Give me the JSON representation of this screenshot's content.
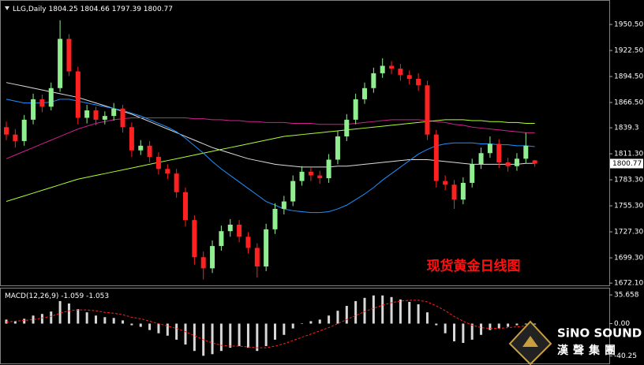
{
  "chart_data": {
    "type": "candlestick",
    "symbol": "LLG,Daily",
    "open": [
      1840,
      1832,
      1825,
      1848,
      1870,
      1862,
      1882,
      1935,
      1900,
      1850,
      1858,
      1848,
      1852,
      1860,
      1840,
      1815,
      1820,
      1808,
      1795,
      1790,
      1770,
      1740,
      1700,
      1688,
      1712,
      1728,
      1735,
      1722,
      1710,
      1690,
      1730,
      1752,
      1760,
      1782,
      1792,
      1788,
      1785,
      1805,
      1830,
      1848,
      1870,
      1882,
      1898,
      1906,
      1903,
      1896,
      1892,
      1885,
      1832,
      1782,
      1778,
      1762,
      1780,
      1800,
      1812,
      1822,
      1802,
      1798,
      1806,
      1804.25
    ],
    "high": [
      1846,
      1838,
      1853,
      1876,
      1875,
      1888,
      1955,
      1940,
      1905,
      1864,
      1862,
      1857,
      1866,
      1864,
      1845,
      1826,
      1825,
      1813,
      1800,
      1795,
      1775,
      1745,
      1706,
      1718,
      1734,
      1741,
      1740,
      1727,
      1715,
      1736,
      1758,
      1766,
      1788,
      1798,
      1797,
      1793,
      1811,
      1836,
      1854,
      1876,
      1888,
      1904,
      1914,
      1911,
      1908,
      1901,
      1898,
      1890,
      1837,
      1788,
      1783,
      1786,
      1806,
      1818,
      1830,
      1827,
      1807,
      1812,
      1834,
      1804.66
    ],
    "low": [
      1826,
      1818,
      1820,
      1843,
      1856,
      1858,
      1878,
      1895,
      1843,
      1844,
      1842,
      1843,
      1847,
      1834,
      1808,
      1810,
      1802,
      1789,
      1784,
      1764,
      1733,
      1692,
      1676,
      1683,
      1707,
      1722,
      1716,
      1704,
      1678,
      1685,
      1725,
      1746,
      1755,
      1777,
      1782,
      1779,
      1780,
      1800,
      1825,
      1843,
      1865,
      1877,
      1893,
      1897,
      1890,
      1886,
      1879,
      1826,
      1775,
      1772,
      1752,
      1757,
      1775,
      1795,
      1807,
      1796,
      1792,
      1793,
      1801,
      1797.39
    ],
    "close": [
      1832,
      1825,
      1848,
      1870,
      1862,
      1882,
      1935,
      1900,
      1850,
      1858,
      1848,
      1852,
      1860,
      1840,
      1815,
      1820,
      1808,
      1795,
      1790,
      1770,
      1740,
      1700,
      1688,
      1712,
      1728,
      1735,
      1722,
      1710,
      1690,
      1730,
      1752,
      1760,
      1782,
      1792,
      1788,
      1785,
      1805,
      1830,
      1848,
      1870,
      1882,
      1898,
      1906,
      1903,
      1896,
      1892,
      1885,
      1832,
      1782,
      1778,
      1762,
      1780,
      1800,
      1812,
      1822,
      1802,
      1798,
      1806,
      1820,
      1800.77
    ],
    "up_color": "#90ee90",
    "down_color": "#ff2020",
    "ylim": [
      1668.8,
      1976
    ],
    "yticks": [
      {
        "value": 1950.5,
        "label": "1950.50"
      },
      {
        "value": 1922.5,
        "label": "1922.50"
      },
      {
        "value": 1894.5,
        "label": "1894.50"
      },
      {
        "value": 1866.5,
        "label": "1866.50"
      },
      1839.3,
      {
        "value": 1811.3,
        "label": "1811.30"
      },
      {
        "value": 1783.3,
        "label": "1783.30"
      },
      {
        "value": 1755.3,
        "label": "1755.30"
      },
      {
        "value": 1727.3,
        "label": "1727.30"
      },
      {
        "value": 1699.3,
        "label": "1699.30"
      },
      {
        "value": 1672.1,
        "label": "1672.10"
      }
    ],
    "overlays": [
      {
        "color": "#dddddd",
        "values": [
          1888,
          1886,
          1884,
          1882,
          1880,
          1878,
          1876,
          1874,
          1872,
          1869,
          1866,
          1863,
          1860,
          1857,
          1854,
          1850,
          1846,
          1842,
          1838,
          1834,
          1830,
          1826,
          1822,
          1818,
          1815,
          1812,
          1809,
          1806,
          1804,
          1802,
          1800,
          1799,
          1798,
          1797,
          1797,
          1797,
          1797,
          1798,
          1798,
          1799,
          1800,
          1801,
          1802,
          1803,
          1804,
          1805,
          1805,
          1805,
          1804,
          1803,
          1802,
          1801,
          1800,
          1800,
          1800,
          1800,
          1800,
          1800,
          1801,
          1801
        ]
      },
      {
        "color": "#d02090",
        "values": [
          1806,
          1810,
          1814,
          1818,
          1822,
          1826,
          1830,
          1834,
          1838,
          1841,
          1844,
          1846,
          1848,
          1849,
          1850,
          1850,
          1850,
          1850,
          1850,
          1850,
          1850,
          1849,
          1849,
          1848,
          1848,
          1847,
          1847,
          1846,
          1846,
          1845,
          1845,
          1845,
          1844,
          1844,
          1844,
          1843,
          1843,
          1843,
          1843,
          1844,
          1845,
          1846,
          1847,
          1848,
          1848,
          1848,
          1848,
          1847,
          1846,
          1845,
          1843,
          1842,
          1840,
          1839,
          1838,
          1837,
          1836,
          1835,
          1834,
          1834
        ]
      },
      {
        "color": "#adff2f",
        "values": [
          1760,
          1763,
          1766,
          1769,
          1772,
          1775,
          1778,
          1781,
          1784,
          1786,
          1788,
          1790,
          1792,
          1794,
          1796,
          1798,
          1800,
          1802,
          1804,
          1806,
          1808,
          1810,
          1812,
          1814,
          1816,
          1818,
          1820,
          1822,
          1824,
          1826,
          1828,
          1830,
          1831,
          1832,
          1833,
          1834,
          1835,
          1836,
          1837,
          1838,
          1839,
          1840,
          1841,
          1842,
          1843,
          1844,
          1845,
          1846,
          1847,
          1848,
          1848,
          1848,
          1847,
          1847,
          1846,
          1846,
          1845,
          1845,
          1844,
          1844
        ]
      },
      {
        "color": "#1e90ff",
        "values": [
          1870,
          1868,
          1866,
          1866,
          1866,
          1867,
          1870,
          1870,
          1868,
          1866,
          1864,
          1862,
          1860,
          1858,
          1855,
          1852,
          1848,
          1844,
          1840,
          1835,
          1828,
          1820,
          1812,
          1803,
          1795,
          1788,
          1781,
          1774,
          1767,
          1760,
          1756,
          1752,
          1750,
          1749,
          1748,
          1748,
          1749,
          1752,
          1756,
          1762,
          1768,
          1775,
          1783,
          1790,
          1797,
          1804,
          1811,
          1816,
          1820,
          1822,
          1823,
          1823,
          1823,
          1822,
          1822,
          1821,
          1821,
          1820,
          1820,
          1819
        ]
      }
    ],
    "annotation": "现货黄金日线图",
    "macd": {
      "label": "MACD(12,26,9)",
      "histogram": [
        5,
        3,
        6,
        10,
        12,
        15,
        28,
        25,
        18,
        14,
        10,
        8,
        7,
        4,
        -2,
        -4,
        -8,
        -12,
        -15,
        -20,
        -26,
        -34,
        -40,
        -38,
        -34,
        -30,
        -28,
        -30,
        -34,
        -28,
        -20,
        -14,
        -6,
        0,
        3,
        5,
        10,
        16,
        22,
        28,
        32,
        35,
        35,
        33,
        30,
        27,
        24,
        14,
        -2,
        -12,
        -22,
        -24,
        -20,
        -14,
        -8,
        -6,
        -4,
        -2,
        -1,
        -1.059
      ],
      "signal": [
        2,
        3,
        4,
        5,
        7,
        9,
        13,
        16,
        17,
        17,
        16,
        14,
        13,
        11,
        8,
        6,
        3,
        0,
        -3,
        -6,
        -10,
        -15,
        -20,
        -24,
        -27,
        -28,
        -28,
        -29,
        -30,
        -30,
        -28,
        -25,
        -21,
        -17,
        -13,
        -9,
        -5,
        0,
        5,
        10,
        15,
        19,
        23,
        26,
        28,
        29,
        29,
        27,
        22,
        16,
        9,
        3,
        -2,
        -5,
        -6,
        -6,
        -5,
        -4,
        -3,
        -1.053
      ],
      "hist_color": "#d8d8d8",
      "signal_color": "#ff2020",
      "ylim": [
        -49.5,
        43.6
      ],
      "yticks": [
        35.658,
        {
          "value": 0,
          "label": "0.00"
        },
        -40.25
      ]
    }
  },
  "logo": {
    "name": "SiNO SOUND",
    "subtitle": "漢聲集團"
  }
}
